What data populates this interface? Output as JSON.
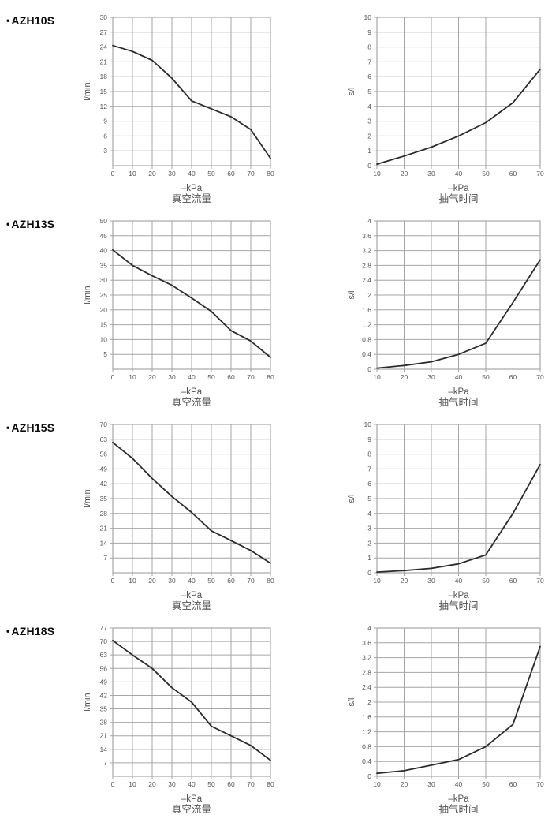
{
  "page_title": "AZH vacuum generator flow / evacuation-time performance curves",
  "colors": {
    "background": "#ffffff",
    "grid": "#a6a6a8",
    "curve": "#2b2b2d",
    "tick_text": "#565659",
    "label_text": "#515154",
    "model_text": "#0a0a0a"
  },
  "sections": [
    {
      "bullet": "•",
      "model": "AZH10S"
    },
    {
      "bullet": "•",
      "model": "AZH13S"
    },
    {
      "bullet": "•",
      "model": "AZH15S"
    },
    {
      "bullet": "•",
      "model": "AZH18S"
    }
  ],
  "chart_data": [
    {
      "id": "azh10s-flow",
      "model": "AZH10S",
      "type": "line",
      "side": "left",
      "title": "真空流量",
      "xlabel": "–kPa",
      "ylabel": "l/min",
      "xlim": [
        0,
        80
      ],
      "ylim": [
        0,
        30
      ],
      "grid": true,
      "legend": "none",
      "xticks": {
        "values": [
          0,
          10,
          20,
          30,
          40,
          50,
          60,
          70,
          80
        ],
        "labels": [
          "0",
          "10",
          "20",
          "30",
          "40",
          "50",
          "60",
          "70",
          "80"
        ]
      },
      "yticks": {
        "values": [
          3,
          6,
          9,
          12,
          15,
          18,
          21,
          24,
          27,
          30
        ],
        "labels": [
          "3",
          "6",
          "9",
          "12",
          "15",
          "18",
          "21",
          "24",
          "27",
          "30"
        ]
      },
      "ygrid_step": 3,
      "x": [
        0,
        10,
        20,
        30,
        40,
        50,
        60,
        70,
        80
      ],
      "y": [
        24.3,
        23.1,
        21.3,
        17.7,
        13.1,
        11.5,
        9.9,
        7.3,
        1.5
      ]
    },
    {
      "id": "azh10s-time",
      "model": "AZH10S",
      "type": "line",
      "side": "right",
      "title": "抽气时间",
      "xlabel": "–kPa",
      "ylabel": "s/l",
      "xlim": [
        10,
        70
      ],
      "ylim": [
        0,
        10
      ],
      "grid": true,
      "legend": "none",
      "xticks": {
        "values": [
          10,
          20,
          30,
          40,
          50,
          60,
          70
        ],
        "labels": [
          "10",
          "20",
          "30",
          "40",
          "50",
          "60",
          "70"
        ]
      },
      "yticks": {
        "values": [
          0,
          1,
          2,
          3,
          4,
          5,
          6,
          7,
          8,
          9,
          10
        ],
        "labels": [
          "0",
          "1",
          "2",
          "3",
          "4",
          "5",
          "6",
          "7",
          "8",
          "9",
          "10"
        ]
      },
      "ygrid_step": 1,
      "x": [
        10,
        20,
        30,
        40,
        50,
        60,
        70
      ],
      "y": [
        0.1,
        0.65,
        1.25,
        2.0,
        2.9,
        4.25,
        6.5
      ]
    },
    {
      "id": "azh13s-flow",
      "model": "AZH13S",
      "type": "line",
      "side": "left",
      "title": "真空流量",
      "xlabel": "–kPa",
      "ylabel": "l/min",
      "xlim": [
        0,
        80
      ],
      "ylim": [
        0,
        50
      ],
      "grid": true,
      "legend": "none",
      "xticks": {
        "values": [
          0,
          10,
          20,
          30,
          40,
          50,
          60,
          70,
          80
        ],
        "labels": [
          "0",
          "10",
          "20",
          "30",
          "40",
          "50",
          "60",
          "70",
          "80"
        ]
      },
      "yticks": {
        "values": [
          5,
          10,
          15,
          20,
          25,
          30,
          35,
          40,
          45,
          50
        ],
        "labels": [
          "5",
          "10",
          "15",
          "20",
          "25",
          "30",
          "35",
          "40",
          "45",
          "50"
        ]
      },
      "ygrid_step": 5,
      "x": [
        0,
        10,
        20,
        30,
        40,
        50,
        60,
        70,
        80
      ],
      "y": [
        40.2,
        35,
        31.5,
        28.3,
        24,
        19.5,
        13,
        9.5,
        4
      ]
    },
    {
      "id": "azh13s-time",
      "model": "AZH13S",
      "type": "line",
      "side": "right",
      "title": "抽气时间",
      "xlabel": "–kPa",
      "ylabel": "s/l",
      "xlim": [
        10,
        70
      ],
      "ylim": [
        0,
        4
      ],
      "grid": true,
      "legend": "none",
      "xticks": {
        "values": [
          10,
          20,
          30,
          40,
          50,
          60,
          70
        ],
        "labels": [
          "10",
          "20",
          "30",
          "40",
          "50",
          "60",
          "70"
        ]
      },
      "yticks": {
        "values": [
          0,
          0.4,
          0.8,
          1.2,
          1.6,
          2,
          2.4,
          2.8,
          3.2,
          3.6,
          4
        ],
        "labels": [
          "0",
          "0.4",
          "0.8",
          "1.2",
          "1.6",
          "2",
          "2.4",
          "2.8",
          "3.2",
          "3.6",
          "4"
        ]
      },
      "ygrid_step": 0.4,
      "x": [
        10,
        20,
        30,
        40,
        50,
        60,
        70
      ],
      "y": [
        0.03,
        0.1,
        0.2,
        0.4,
        0.7,
        1.8,
        2.95
      ]
    },
    {
      "id": "azh15s-flow",
      "model": "AZH15S",
      "type": "line",
      "side": "left",
      "title": "真空流量",
      "xlabel": "–kPa",
      "ylabel": "l/min",
      "xlim": [
        0,
        80
      ],
      "ylim": [
        0,
        70
      ],
      "grid": true,
      "legend": "none",
      "xticks": {
        "values": [
          0,
          10,
          20,
          30,
          40,
          50,
          60,
          70,
          80
        ],
        "labels": [
          "0",
          "10",
          "20",
          "30",
          "40",
          "50",
          "60",
          "70",
          "80"
        ]
      },
      "yticks": {
        "values": [
          7,
          14,
          21,
          28,
          35,
          42,
          49,
          56,
          63,
          70
        ],
        "labels": [
          "7",
          "14",
          "21",
          "28",
          "35",
          "42",
          "49",
          "56",
          "63",
          "70"
        ]
      },
      "ygrid_step": 7,
      "x": [
        0,
        10,
        20,
        30,
        40,
        50,
        60,
        70,
        80
      ],
      "y": [
        61.5,
        54,
        44.5,
        36,
        28.5,
        19.8,
        15.2,
        10.5,
        4.5
      ]
    },
    {
      "id": "azh15s-time",
      "model": "AZH15S",
      "type": "line",
      "side": "right",
      "title": "抽气时间",
      "xlabel": "–kPa",
      "ylabel": "s/l",
      "xlim": [
        10,
        70
      ],
      "ylim": [
        0,
        10
      ],
      "grid": true,
      "legend": "none",
      "xticks": {
        "values": [
          10,
          20,
          30,
          40,
          50,
          60,
          70
        ],
        "labels": [
          "10",
          "20",
          "30",
          "40",
          "50",
          "60",
          "70"
        ]
      },
      "yticks": {
        "values": [
          0,
          1,
          2,
          3,
          4,
          5,
          6,
          7,
          8,
          9,
          10
        ],
        "labels": [
          "0",
          "1",
          "2",
          "3",
          "4",
          "5",
          "6",
          "7",
          "8",
          "9",
          "10"
        ]
      },
      "ygrid_step": 1,
      "x": [
        10,
        20,
        30,
        40,
        50,
        60,
        70
      ],
      "y": [
        0.05,
        0.15,
        0.3,
        0.6,
        1.2,
        4.0,
        7.3
      ]
    },
    {
      "id": "azh18s-flow",
      "model": "AZH18S",
      "type": "line",
      "side": "left",
      "title": "真空流量",
      "xlabel": "–kPa",
      "ylabel": "l/min",
      "xlim": [
        0,
        80
      ],
      "ylim": [
        0,
        77
      ],
      "grid": true,
      "legend": "none",
      "xticks": {
        "values": [
          0,
          10,
          20,
          30,
          40,
          50,
          60,
          70,
          80
        ],
        "labels": [
          "0",
          "10",
          "20",
          "30",
          "40",
          "50",
          "60",
          "70",
          "80"
        ]
      },
      "yticks": {
        "values": [
          7,
          14,
          21,
          28,
          35,
          42,
          49,
          56,
          63,
          70,
          77
        ],
        "labels": [
          "7",
          "14",
          "21",
          "28",
          "35",
          "42",
          "49",
          "56",
          "63",
          "70",
          "77"
        ]
      },
      "ygrid_step": 7,
      "x": [
        0,
        10,
        20,
        30,
        40,
        50,
        60,
        70,
        80
      ],
      "y": [
        70.5,
        63,
        56,
        46,
        38.5,
        26,
        21,
        16,
        8.3
      ]
    },
    {
      "id": "azh18s-time",
      "model": "AZH18S",
      "type": "line",
      "side": "right",
      "title": "抽气时间",
      "xlabel": "–kPa",
      "ylabel": "s/l",
      "xlim": [
        10,
        70
      ],
      "ylim": [
        0,
        4
      ],
      "grid": true,
      "legend": "none",
      "xticks": {
        "values": [
          10,
          20,
          30,
          40,
          50,
          60,
          70
        ],
        "labels": [
          "10",
          "20",
          "30",
          "40",
          "50",
          "60",
          "70"
        ]
      },
      "yticks": {
        "values": [
          0,
          0.4,
          0.8,
          1.2,
          1.6,
          2,
          2.4,
          2.8,
          3.2,
          3.6,
          4
        ],
        "labels": [
          "0",
          "0.4",
          "0.8",
          "1.2",
          "1.6",
          "2",
          "2.4",
          "2.8",
          "3.2",
          "3.6",
          "4"
        ]
      },
      "ygrid_step": 0.4,
      "x": [
        10,
        20,
        30,
        40,
        50,
        60,
        70
      ],
      "y": [
        0.08,
        0.15,
        0.3,
        0.45,
        0.8,
        1.4,
        3.5
      ]
    }
  ]
}
